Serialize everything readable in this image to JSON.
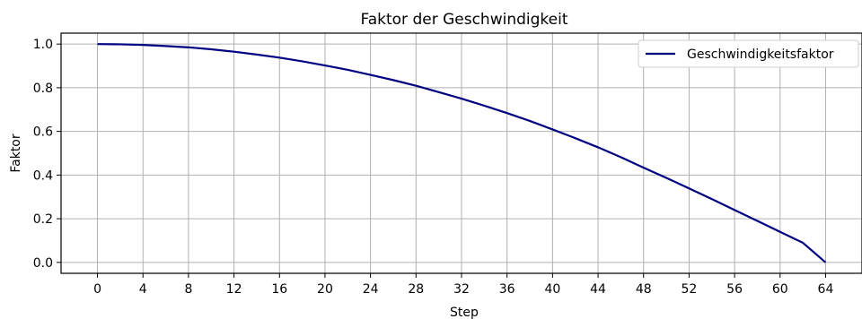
{
  "chart_data": {
    "type": "line",
    "title": "Faktor der Geschwindigkeit",
    "xlabel": "Step",
    "ylabel": "Faktor",
    "xlim": [
      -3.2,
      67.2
    ],
    "ylim": [
      -0.05,
      1.05
    ],
    "xticks": [
      "0",
      "4",
      "8",
      "12",
      "16",
      "20",
      "24",
      "28",
      "32",
      "36",
      "40",
      "44",
      "48",
      "52",
      "56",
      "60",
      "64"
    ],
    "yticks": [
      "0.0",
      "0.2",
      "0.4",
      "0.6",
      "0.8",
      "1.0"
    ],
    "grid": true,
    "legend_position": "top-right",
    "series": [
      {
        "name": "Geschwindigkeitsfaktor",
        "color": "#000080",
        "x": [
          0,
          2,
          4,
          6,
          8,
          10,
          12,
          14,
          16,
          18,
          20,
          22,
          24,
          26,
          28,
          30,
          32,
          34,
          36,
          38,
          40,
          42,
          44,
          46,
          48,
          50,
          52,
          54,
          56,
          58,
          60,
          62,
          64
        ],
        "y": [
          1.0,
          0.999,
          0.996,
          0.991,
          0.985,
          0.976,
          0.965,
          0.952,
          0.938,
          0.921,
          0.902,
          0.882,
          0.859,
          0.835,
          0.809,
          0.78,
          0.75,
          0.718,
          0.684,
          0.648,
          0.609,
          0.569,
          0.527,
          0.482,
          0.434,
          0.387,
          0.339,
          0.29,
          0.24,
          0.19,
          0.14,
          0.09,
          0.0
        ]
      }
    ]
  }
}
